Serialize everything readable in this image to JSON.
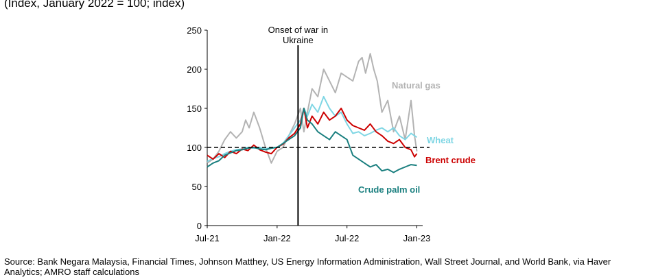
{
  "subtitle": "(Index, January 2022 = 100; index)",
  "source": "Source: Bank Negara Malaysia, Financial Times, Johnson Matthey, US Energy Information Administration, Wall Street Journal, and World Bank, via Haver Analytics; AMRO staff calculations",
  "chart_data": {
    "type": "line",
    "title": "",
    "xlabel": "",
    "ylabel": "",
    "ylim": [
      0,
      250
    ],
    "yticks": [
      0,
      50,
      100,
      150,
      200,
      250
    ],
    "xlim": [
      0,
      18.5
    ],
    "x_ticks": [
      {
        "x": 0,
        "label": "Jul-21"
      },
      {
        "x": 6,
        "label": "Jan-22"
      },
      {
        "x": 12,
        "label": "Jul-22"
      },
      {
        "x": 18,
        "label": "Jan-23"
      }
    ],
    "reference_line": {
      "y": 100,
      "style": "dashed"
    },
    "event": {
      "x": 7.8,
      "label_lines": [
        "Onset of war in",
        "Ukraine"
      ]
    },
    "series": [
      {
        "name": "Natural gas",
        "color": "#b3b3b3",
        "x": [
          0,
          0.5,
          1,
          1.5,
          2,
          2.5,
          3,
          3.3,
          3.6,
          4,
          4.5,
          5,
          5.5,
          6,
          6.5,
          7,
          7.5,
          8,
          8.3,
          8.6,
          9,
          9.5,
          10,
          10.5,
          11,
          11.5,
          12,
          12.5,
          13,
          13.3,
          13.6,
          14,
          14.3,
          14.6,
          15,
          15.5,
          16,
          16.5,
          17,
          17.5,
          17.8,
          18
        ],
        "values": [
          80,
          85,
          95,
          110,
          120,
          112,
          120,
          135,
          125,
          145,
          125,
          100,
          80,
          95,
          100,
          115,
          130,
          150,
          120,
          145,
          175,
          165,
          200,
          185,
          170,
          195,
          190,
          185,
          210,
          215,
          195,
          220,
          200,
          185,
          145,
          160,
          120,
          140,
          110,
          160,
          115,
          95
        ]
      },
      {
        "name": "Wheat",
        "color": "#7fd6e4",
        "x": [
          0,
          0.5,
          1,
          1.5,
          2,
          2.5,
          3,
          3.5,
          4,
          4.5,
          5,
          5.5,
          6,
          6.5,
          7,
          7.5,
          8,
          8.3,
          8.6,
          9,
          9.5,
          10,
          10.5,
          11,
          11.5,
          12,
          12.5,
          13,
          13.5,
          14,
          14.5,
          15,
          15.5,
          16,
          16.5,
          17,
          17.5,
          18
        ],
        "values": [
          82,
          86,
          88,
          92,
          95,
          97,
          98,
          100,
          99,
          100,
          98,
          100,
          100,
          105,
          115,
          125,
          135,
          150,
          140,
          155,
          145,
          165,
          150,
          140,
          145,
          130,
          118,
          120,
          115,
          118,
          122,
          125,
          120,
          125,
          115,
          110,
          118,
          113
        ]
      },
      {
        "name": "Brent crude",
        "color": "#cc0000",
        "x": [
          0,
          0.5,
          1,
          1.5,
          2,
          2.5,
          3,
          3.5,
          4,
          4.5,
          5,
          5.5,
          6,
          6.5,
          7,
          7.5,
          8,
          8.3,
          8.6,
          9,
          9.5,
          10,
          10.5,
          11,
          11.5,
          12,
          12.5,
          13,
          13.5,
          14,
          14.5,
          15,
          15.5,
          16,
          16.5,
          17,
          17.5,
          17.8,
          18
        ],
        "values": [
          90,
          85,
          92,
          87,
          95,
          92,
          98,
          96,
          103,
          97,
          94,
          92,
          100,
          104,
          112,
          118,
          130,
          150,
          125,
          140,
          130,
          145,
          135,
          140,
          150,
          135,
          128,
          125,
          122,
          130,
          120,
          115,
          108,
          105,
          110,
          100,
          97,
          88,
          92
        ]
      },
      {
        "name": "Crude palm oil",
        "color": "#1a7f7f",
        "x": [
          0,
          0.5,
          1,
          1.5,
          2,
          2.5,
          3,
          3.5,
          4,
          4.5,
          5,
          5.5,
          6,
          6.5,
          7,
          7.5,
          8,
          8.3,
          8.6,
          9,
          9.5,
          10,
          10.5,
          11,
          11.5,
          12,
          12.5,
          13,
          13.5,
          14,
          14.5,
          15,
          15.5,
          16,
          16.5,
          17,
          17.5,
          18
        ],
        "values": [
          75,
          80,
          83,
          90,
          93,
          96,
          97,
          99,
          100,
          98,
          97,
          99,
          100,
          105,
          110,
          115,
          125,
          150,
          135,
          130,
          120,
          115,
          110,
          120,
          115,
          110,
          90,
          85,
          80,
          75,
          78,
          70,
          72,
          68,
          72,
          75,
          78,
          77
        ]
      }
    ]
  }
}
